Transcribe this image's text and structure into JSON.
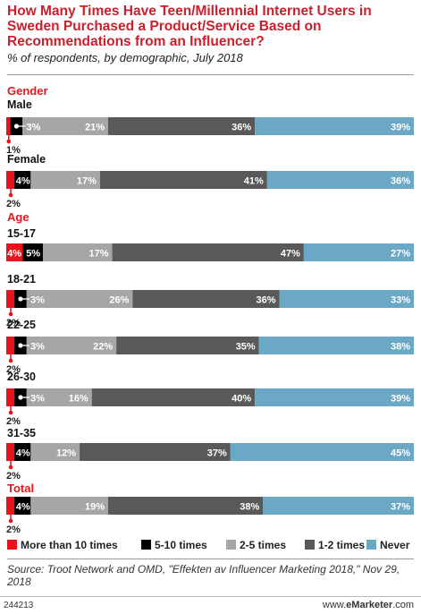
{
  "chart_data": {
    "type": "bar",
    "stacked": true,
    "orientation": "horizontal",
    "title": "How Many Times Have Teen/Millennial Internet Users in Sweden Purchased a Product/Service Based on Recommendations from an Influencer?",
    "subtitle": "% of respondents, by demographic, July 2018",
    "unit": "%",
    "series_names": [
      "More than 10 times",
      "5-10 times",
      "2-5 times",
      "1-2 times",
      "Never"
    ],
    "colors": [
      "#e8141d",
      "#000000",
      "#a6a6a6",
      "#595959",
      "#6aa8c6"
    ],
    "sections": [
      {
        "label": "Gender",
        "rows": [
          {
            "label": "Male",
            "values": [
              1,
              3,
              21,
              36,
              39
            ]
          },
          {
            "label": "Female",
            "values": [
              2,
              4,
              17,
              41,
              36
            ]
          }
        ]
      },
      {
        "label": "Age",
        "rows": [
          {
            "label": "15-17",
            "values": [
              4,
              5,
              17,
              47,
              27
            ]
          },
          {
            "label": "18-21",
            "values": [
              2,
              3,
              26,
              36,
              33
            ]
          },
          {
            "label": "22-25",
            "values": [
              2,
              3,
              22,
              35,
              38
            ]
          },
          {
            "label": "26-30",
            "values": [
              2,
              3,
              16,
              40,
              39
            ]
          },
          {
            "label": "31-35",
            "values": [
              2,
              4,
              12,
              37,
              45
            ]
          }
        ]
      },
      {
        "label": "Total",
        "rows": [
          {
            "label": "",
            "values": [
              2,
              4,
              19,
              38,
              37
            ]
          }
        ]
      }
    ],
    "legend_position": "bottom"
  },
  "source": "Source: Troot Network and OMD, \"Effekten av Influencer Marketing 2018,\" Nov 29, 2018",
  "footer": {
    "chart_id": "244213",
    "brand_prefix": "www.",
    "brand_name": "eMarketer",
    "brand_suffix": ".com"
  }
}
